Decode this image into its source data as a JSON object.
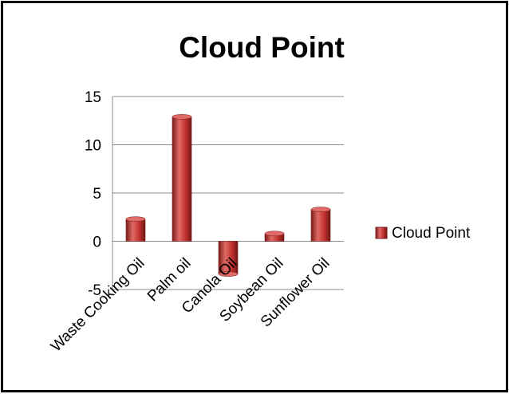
{
  "chart_data": {
    "type": "bar",
    "title": "Cloud Point",
    "categories": [
      "Waste Cooking Oil",
      "Palm oil",
      "Canola Oil",
      "Soybean Oil",
      "Sunflower Oil"
    ],
    "series": [
      {
        "name": "Cloud Point",
        "values": [
          2.3,
          12.9,
          -3.4,
          0.8,
          3.3
        ]
      }
    ],
    "yticks": [
      "-5",
      "0",
      "5",
      "10",
      "15"
    ],
    "ylim": [
      -5,
      15
    ],
    "grid": true,
    "legend": "right",
    "colors": {
      "bar": "#c0302d",
      "bar_dark": "#7a1c1a",
      "bar_light": "#e06a66",
      "grid": "#8c8c8c"
    }
  }
}
